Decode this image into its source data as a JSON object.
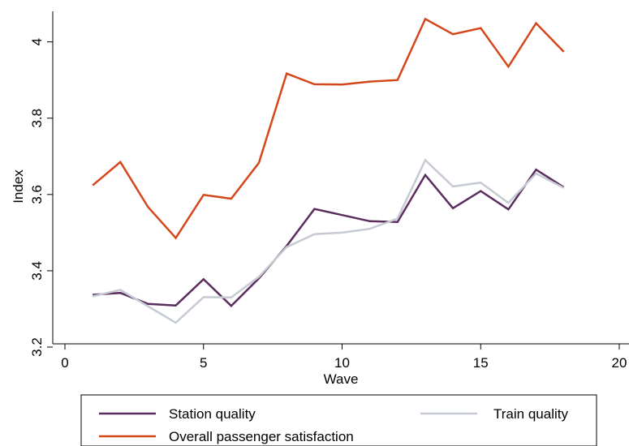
{
  "chart_data": {
    "type": "line",
    "xlabel": "Wave",
    "ylabel": "Index",
    "xlim": [
      0,
      20
    ],
    "ylim": [
      3.2,
      4.08
    ],
    "xticks": [
      0,
      5,
      10,
      15,
      20
    ],
    "yticks": [
      3.2,
      3.4,
      3.6,
      3.8,
      4
    ],
    "ytick_labels": [
      "3.2",
      "3.4",
      "3.6",
      "3.8",
      "4"
    ],
    "xtick_labels": [
      "0",
      "5",
      "10",
      "15",
      "20"
    ],
    "grid": false,
    "legend_position": "bottom",
    "x": [
      1,
      2,
      3,
      4,
      5,
      6,
      7,
      8,
      9,
      10,
      11,
      12,
      13,
      14,
      15,
      16,
      17,
      18
    ],
    "series": [
      {
        "name": "Station quality",
        "color": "#5b2c5e",
        "values": [
          3.337,
          3.342,
          3.313,
          3.309,
          3.378,
          3.308,
          3.38,
          3.465,
          3.562,
          3.546,
          3.53,
          3.528,
          3.651,
          3.564,
          3.609,
          3.561,
          3.665,
          3.619
        ]
      },
      {
        "name": "Train quality",
        "color": "#c5cad3",
        "values": [
          3.333,
          3.35,
          3.307,
          3.264,
          3.331,
          3.33,
          3.384,
          3.462,
          3.496,
          3.5,
          3.51,
          3.537,
          3.69,
          3.621,
          3.631,
          3.578,
          3.655,
          3.617
        ]
      },
      {
        "name": "Overall passenger satisfaction",
        "color": "#d4471b",
        "values": [
          3.624,
          3.685,
          3.567,
          3.486,
          3.599,
          3.589,
          3.683,
          3.917,
          3.889,
          3.888,
          3.896,
          3.9,
          4.06,
          4.02,
          4.036,
          3.935,
          4.049,
          3.974
        ]
      }
    ]
  }
}
